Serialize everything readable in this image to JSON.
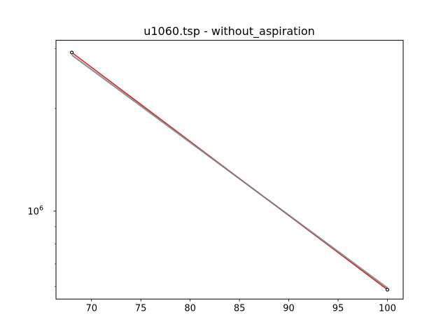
{
  "chart_data": {
    "type": "line",
    "title": "u1060.tsp - without_aspiration",
    "xlabel": "",
    "ylabel": "",
    "xlim": [
      66.4,
      101.6
    ],
    "ylim": [
      552000,
      3170000
    ],
    "yscale": "log",
    "x_ticks": [
      70,
      75,
      80,
      85,
      90,
      95,
      100
    ],
    "y_major_ticks": [
      {
        "value": 1000000,
        "base": "10",
        "exp": "6"
      }
    ],
    "y_minor_ticks": [
      600000,
      700000,
      800000,
      900000,
      2000000,
      3000000
    ],
    "grid": false,
    "series": [
      {
        "color": "#d62728",
        "points": [
          [
            68,
            2920000
          ],
          [
            100,
            588000
          ]
        ],
        "marker": false
      },
      {
        "color": "#7f7f7f",
        "points": [
          [
            68,
            2870000
          ],
          [
            100,
            595000
          ]
        ],
        "marker": false
      },
      {
        "color": "#000000",
        "points": [
          [
            68,
            2920000
          ],
          [
            100,
            588000
          ]
        ],
        "marker": "circle-end-points"
      }
    ]
  }
}
